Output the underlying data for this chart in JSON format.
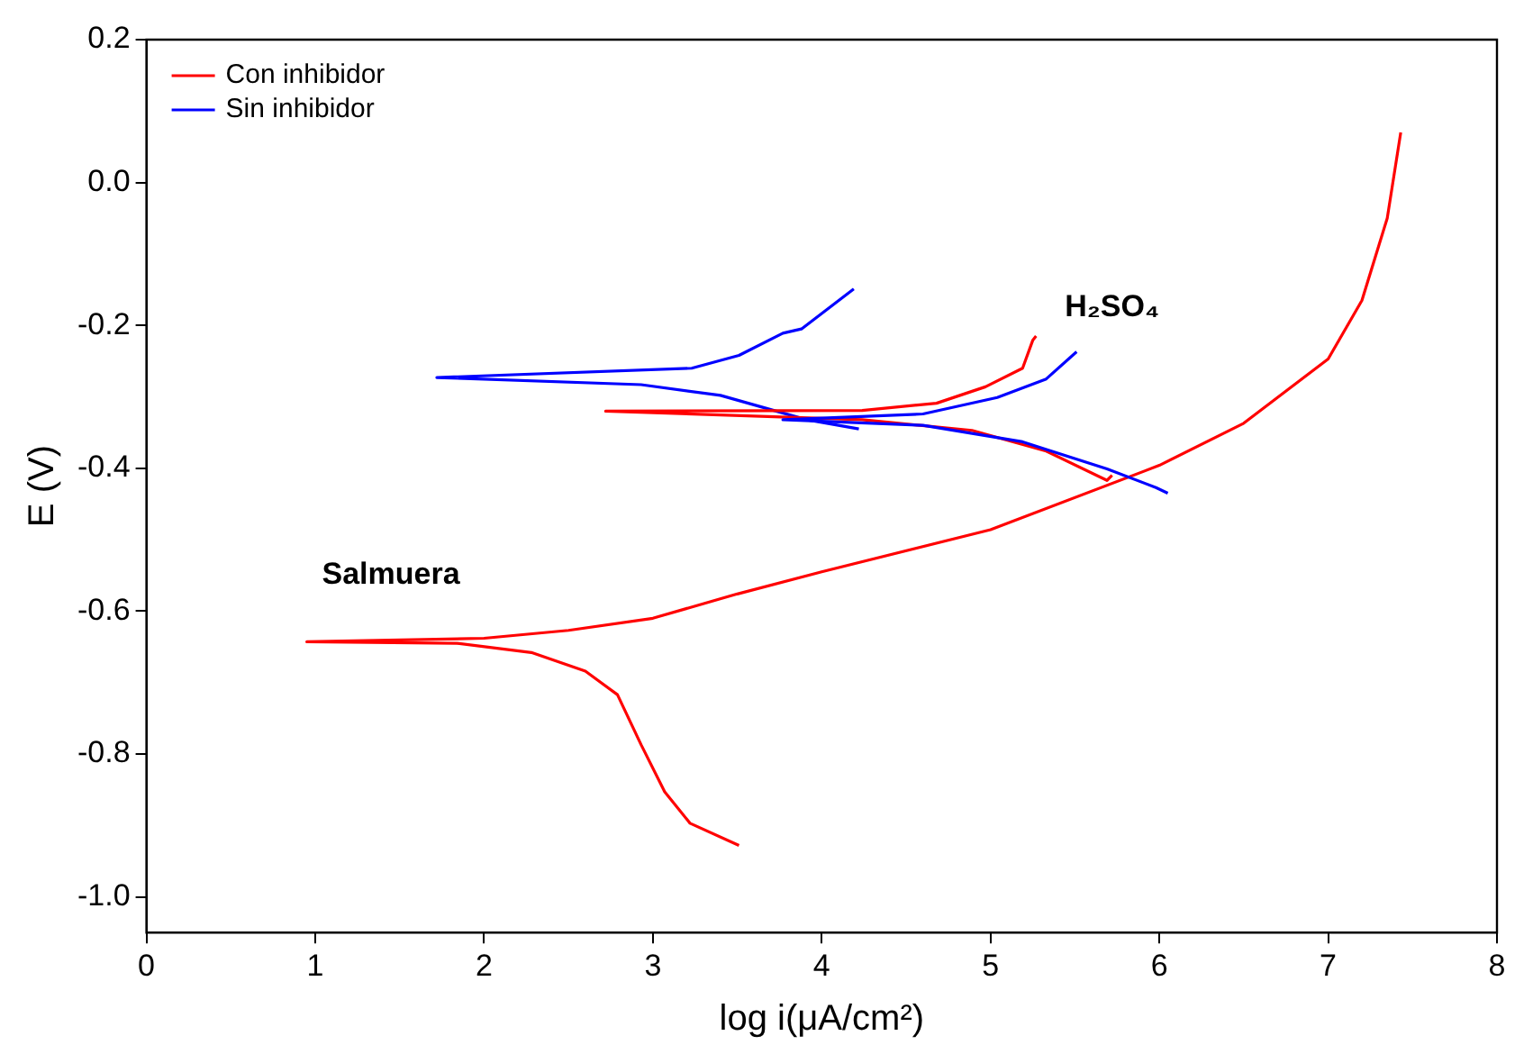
{
  "chart_data": {
    "type": "line",
    "xlabel": "log i(μA/cm²)",
    "ylabel": "E (V)",
    "xlim": [
      0,
      8
    ],
    "ylim": [
      -1.05,
      0.2
    ],
    "xticks": [
      0,
      1,
      2,
      3,
      4,
      5,
      6,
      7,
      8
    ],
    "yticks": [
      {
        "value": -1.0,
        "label": "-1.0"
      },
      {
        "value": -0.8,
        "label": "-0.8"
      },
      {
        "value": -0.6,
        "label": "-0.6"
      },
      {
        "value": -0.4,
        "label": "-0.4"
      },
      {
        "value": -0.2,
        "label": "-0.2"
      },
      {
        "value": 0.0,
        "label": "0.0"
      },
      {
        "value": 0.2,
        "label": "0.2"
      }
    ],
    "grid": false,
    "legend": "top left",
    "marker": "none",
    "line_style": "solid",
    "series": [
      {
        "name": "Con inhibidor",
        "color": "#ff0000",
        "x": [
          3.51,
          3.22,
          3.07,
          2.93,
          2.79,
          2.6,
          2.28,
          1.84,
          0.95,
          2.0,
          2.5,
          3.0,
          3.5,
          4.0,
          5.0,
          6.0,
          6.5,
          7.0,
          7.2,
          7.35,
          7.43
        ],
        "values": [
          -0.928,
          -0.897,
          -0.853,
          -0.787,
          -0.717,
          -0.684,
          -0.658,
          -0.645,
          -0.643,
          -0.638,
          -0.627,
          -0.61,
          -0.576,
          -0.545,
          -0.486,
          -0.396,
          -0.337,
          -0.247,
          -0.165,
          -0.05,
          0.07
        ]
      },
      {
        "name": "Sin inhibidor",
        "color": "#0000ff",
        "x": [
          4.22,
          3.91,
          3.4,
          2.93,
          1.72,
          3.23,
          3.51,
          3.77,
          3.88,
          4.19
        ],
        "values": [
          -0.345,
          -0.332,
          -0.298,
          -0.283,
          -0.273,
          -0.26,
          -0.242,
          -0.211,
          -0.205,
          -0.149
        ]
      },
      {
        "color": "#ff0000",
        "x": [
          5.72,
          5.69,
          5.33,
          4.89,
          4.24,
          2.72,
          4.24,
          4.68,
          4.97,
          5.19,
          5.25,
          5.27
        ],
        "values": [
          -0.41,
          -0.417,
          -0.376,
          -0.347,
          -0.332,
          -0.32,
          -0.319,
          -0.309,
          -0.286,
          -0.26,
          -0.221,
          -0.215
        ]
      },
      {
        "color": "#0000ff",
        "x": [
          6.05,
          5.98,
          5.69,
          5.19,
          4.6,
          3.77,
          4.6,
          5.04,
          5.33,
          5.51
        ],
        "values": [
          -0.435,
          -0.427,
          -0.401,
          -0.363,
          -0.34,
          -0.332,
          -0.324,
          -0.301,
          -0.275,
          -0.237
        ]
      }
    ],
    "annotations": [
      "Salmuera",
      "H₂SO₄"
    ]
  }
}
